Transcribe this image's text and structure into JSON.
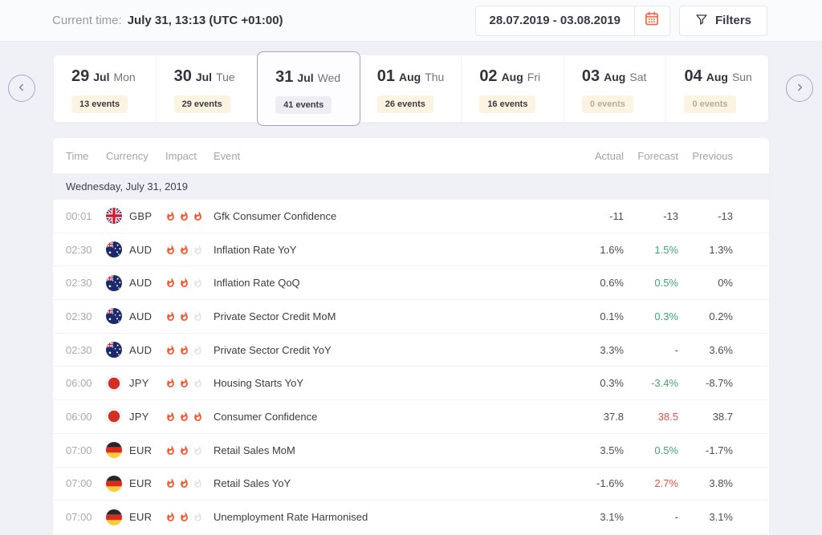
{
  "header": {
    "current_time_label": "Current time:",
    "current_time_value": "July 31, 13:13 (UTC +01:00)",
    "date_range": "28.07.2019 - 03.08.2019",
    "filters_label": "Filters"
  },
  "colors": {
    "accent_orange": "#ed6a4b",
    "flame_active": "#f4582f",
    "flame_inactive": "#e6e6ea",
    "positive_green": "#3fa86b",
    "negative_red": "#e05247",
    "badge_cream": "#fcf3e1",
    "selected_border": "#a49dce"
  },
  "day_tabs": [
    {
      "day": "29",
      "month": "Jul",
      "weekday": "Mon",
      "events": "13 events",
      "selected": false
    },
    {
      "day": "30",
      "month": "Jul",
      "weekday": "Tue",
      "events": "29 events",
      "selected": false
    },
    {
      "day": "31",
      "month": "Jul",
      "weekday": "Wed",
      "events": "41 events",
      "selected": true
    },
    {
      "day": "01",
      "month": "Aug",
      "weekday": "Thu",
      "events": "26 events",
      "selected": false
    },
    {
      "day": "02",
      "month": "Aug",
      "weekday": "Fri",
      "events": "16 events",
      "selected": false
    },
    {
      "day": "03",
      "month": "Aug",
      "weekday": "Sat",
      "events": "0 events",
      "selected": false
    },
    {
      "day": "04",
      "month": "Aug",
      "weekday": "Sun",
      "events": "0 events",
      "selected": false
    }
  ],
  "table": {
    "columns": [
      "Time",
      "Currency",
      "Impact",
      "Event",
      "Actual",
      "Forecast",
      "Previous"
    ],
    "section_title": "Wednesday, July 31, 2019",
    "rows": [
      {
        "time": "00:01",
        "currency": "GBP",
        "flag": "gb",
        "impact": 3,
        "event": "Gfk Consumer Confidence",
        "actual": "-11",
        "forecast": "-13",
        "previous": "-13",
        "forecast_color": "neutral"
      },
      {
        "time": "02:30",
        "currency": "AUD",
        "flag": "au",
        "impact": 2,
        "event": "Inflation Rate YoY",
        "actual": "1.6%",
        "forecast": "1.5%",
        "previous": "1.3%",
        "forecast_color": "green"
      },
      {
        "time": "02:30",
        "currency": "AUD",
        "flag": "au",
        "impact": 2,
        "event": "Inflation Rate QoQ",
        "actual": "0.6%",
        "forecast": "0.5%",
        "previous": "0%",
        "forecast_color": "green"
      },
      {
        "time": "02:30",
        "currency": "AUD",
        "flag": "au",
        "impact": 2,
        "event": "Private Sector Credit MoM",
        "actual": "0.1%",
        "forecast": "0.3%",
        "previous": "0.2%",
        "forecast_color": "green"
      },
      {
        "time": "02:30",
        "currency": "AUD",
        "flag": "au",
        "impact": 2,
        "event": "Private Sector Credit YoY",
        "actual": "3.3%",
        "forecast": "-",
        "previous": "3.6%",
        "forecast_color": "neutral"
      },
      {
        "time": "06:00",
        "currency": "JPY",
        "flag": "jp",
        "impact": 2,
        "event": "Housing Starts YoY",
        "actual": "0.3%",
        "forecast": "-3.4%",
        "previous": "-8.7%",
        "forecast_color": "green"
      },
      {
        "time": "06:00",
        "currency": "JPY",
        "flag": "jp",
        "impact": 3,
        "event": "Consumer Confidence",
        "actual": "37.8",
        "forecast": "38.5",
        "previous": "38.7",
        "forecast_color": "red"
      },
      {
        "time": "07:00",
        "currency": "EUR",
        "flag": "de",
        "impact": 2,
        "event": "Retail Sales MoM",
        "actual": "3.5%",
        "forecast": "0.5%",
        "previous": "-1.7%",
        "forecast_color": "green"
      },
      {
        "time": "07:00",
        "currency": "EUR",
        "flag": "de",
        "impact": 2,
        "event": "Retail Sales YoY",
        "actual": "-1.6%",
        "forecast": "2.7%",
        "previous": "3.8%",
        "forecast_color": "red"
      },
      {
        "time": "07:00",
        "currency": "EUR",
        "flag": "de",
        "impact": 2,
        "event": "Unemployment Rate Harmonised",
        "actual": "3.1%",
        "forecast": "-",
        "previous": "3.1%",
        "forecast_color": "neutral"
      }
    ]
  }
}
